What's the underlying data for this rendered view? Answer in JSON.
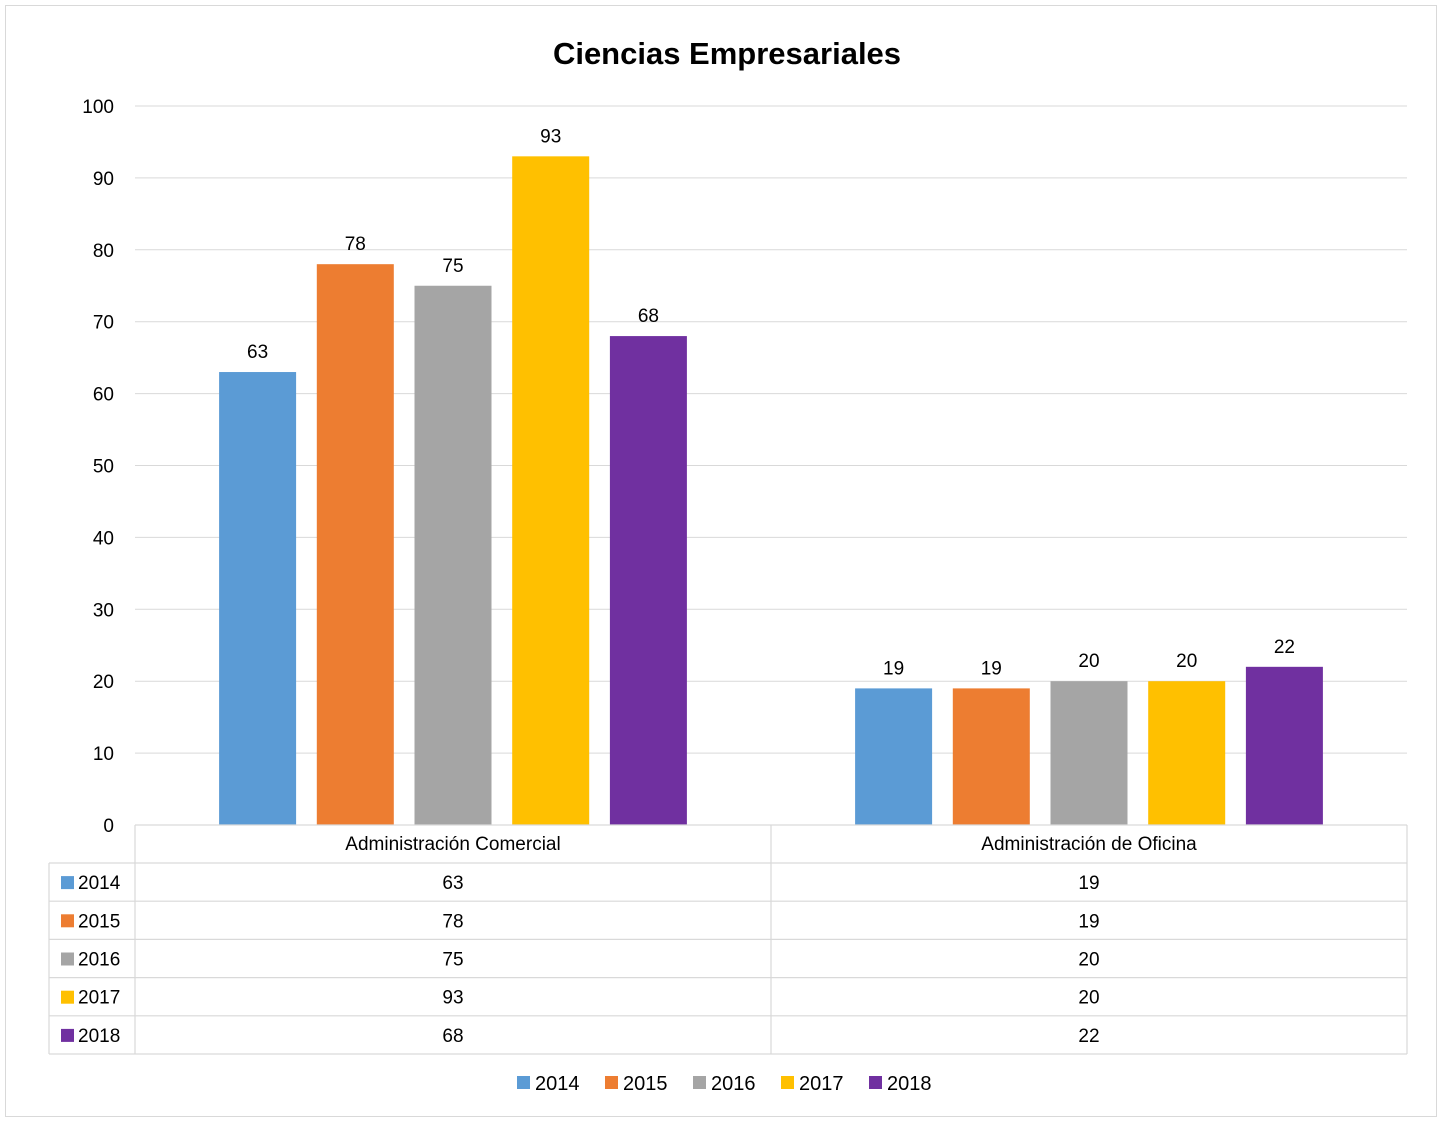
{
  "chart_data": {
    "type": "bar",
    "title": "Ciencias Empresariales",
    "categories": [
      "Administración Comercial",
      "Administración de Oficina"
    ],
    "series": [
      {
        "name": "2014",
        "color": "#5b9bd5",
        "values": [
          63,
          19
        ]
      },
      {
        "name": "2015",
        "color": "#ed7d31",
        "values": [
          78,
          19
        ]
      },
      {
        "name": "2016",
        "color": "#a5a5a5",
        "values": [
          75,
          20
        ]
      },
      {
        "name": "2017",
        "color": "#ffc000",
        "values": [
          93,
          20
        ]
      },
      {
        "name": "2018",
        "color": "#7030a0",
        "values": [
          68,
          22
        ]
      }
    ],
    "ylim": [
      0,
      100
    ],
    "yticks": [
      0,
      10,
      20,
      30,
      40,
      50,
      60,
      70,
      80,
      90,
      100
    ],
    "xlabel": "",
    "ylabel": "",
    "grid": true,
    "data_labels": true,
    "data_table": true,
    "legend": "bottom"
  }
}
